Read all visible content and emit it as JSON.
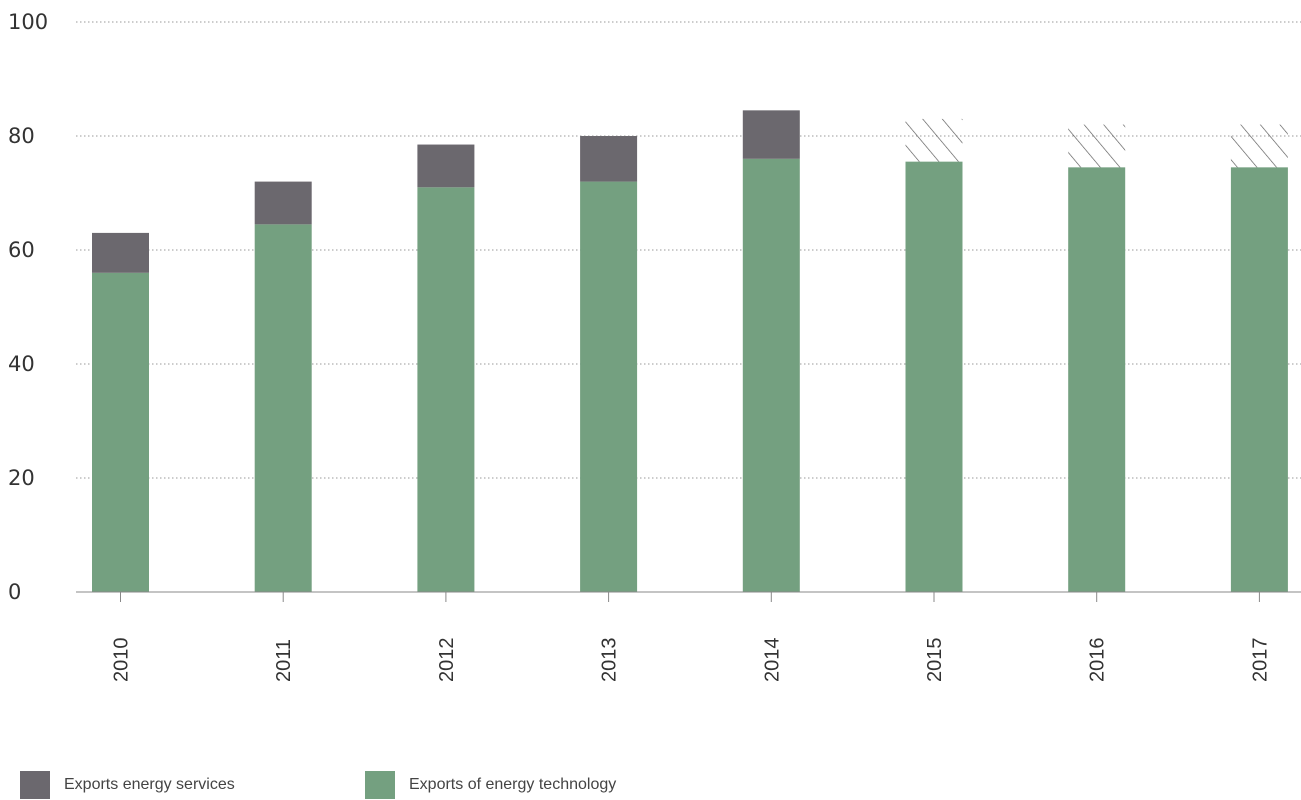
{
  "chart_data": {
    "type": "bar",
    "stacked": true,
    "categories": [
      "2010",
      "2011",
      "2012",
      "2013",
      "2014",
      "2015",
      "2016",
      "2017"
    ],
    "series": [
      {
        "name": "Exports of energy technology",
        "color": "#74a080",
        "values": [
          56,
          64.5,
          71,
          72,
          76,
          75.5,
          74.5,
          74.5
        ]
      },
      {
        "name": "Exports energy services",
        "color": "#6b686e",
        "values": [
          7,
          7.5,
          7.5,
          8,
          8.5,
          null,
          null,
          null
        ]
      }
    ],
    "estimated_services": {
      "style": "hatched",
      "values": [
        null,
        null,
        null,
        null,
        null,
        7.5,
        7.5,
        7.5
      ]
    },
    "ylim": [
      0,
      100
    ],
    "yticks": [
      "0",
      "20",
      "40",
      "60",
      "80",
      "100"
    ],
    "grid": true,
    "legend_position": "bottom-left",
    "title": "",
    "xlabel": "",
    "ylabel": ""
  },
  "legend": {
    "services_label": "Exports energy services",
    "technology_label": "Exports of energy technology"
  },
  "colors": {
    "technology": "#74a080",
    "services": "#6b686e",
    "grid": "#9a9a9a",
    "axis": "#888888"
  }
}
